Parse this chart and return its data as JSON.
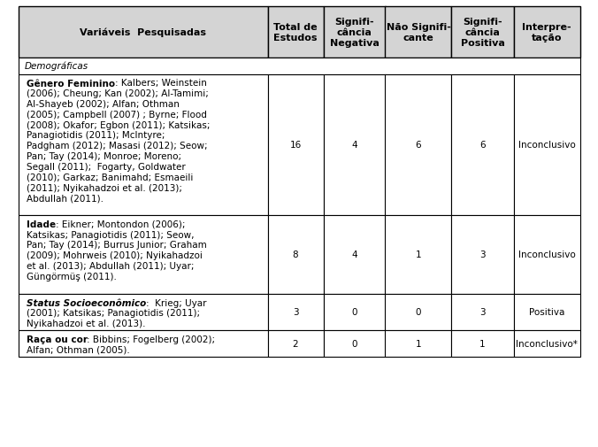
{
  "col_headers": [
    "Variáveis  Pesquisadas",
    "Total de\nEstudos",
    "Signifi-\ncância\nNegativa",
    "Não Signifi-\ncante",
    "Signifi-\ncância\nPositiva",
    "Interpre-\ntação"
  ],
  "section_label": "Demográficas",
  "rows": [
    {
      "var_bold": "Gênero Feminino",
      "var_italic_bold": false,
      "var_rest": ": Kalbers; Weinstein\n(2006); Cheung; Kan (2002); Al-Tamimi;\nAl-Shayeb (2002); Alfan; Othman\n(2005); Campbell (2007) ; Byrne; Flood\n(2008); Okafor; Egbon (2011); Katsikas;\nPanagiotidis (2011); McIntyre;\nPadgham (2012); Masasi (2012); Seow;\nPan; Tay (2014); Monroe; Moreno;\nSegall (2011);  Fogarty, Goldwater\n(2010); Garkaz; Banimahd; Esmaeili\n(2011); Nyikahadzoi et al. (2013);\nAbdullah (2011).",
      "total": "16",
      "neg": "4",
      "ns": "6",
      "pos": "6",
      "interp": "Inconclusivo"
    },
    {
      "var_bold": "Idade",
      "var_italic_bold": false,
      "var_rest": ": Eikner; Montondon (2006);\nKatsikas; Panagiotidis (2011); Seow,\nPan; Tay (2014); Burrus Junior; Graham\n(2009); Mohrweis (2010); Nyikahadzoi\net al. (2013); Abdullah (2011); Uyar;\nGüngörmüş (2011).",
      "total": "8",
      "neg": "4",
      "ns": "1",
      "pos": "3",
      "interp": "Inconclusivo"
    },
    {
      "var_bold": "Status Socioeconômico",
      "var_italic_bold": true,
      "var_rest": ":  Krieg; Uyar\n(2001); Katsikas; Panagiotidis (2011);\nNyikahadzoi et al. (2013).",
      "total": "3",
      "neg": "0",
      "ns": "0",
      "pos": "3",
      "interp": "Positiva"
    },
    {
      "var_bold": "Raça ou cor",
      "var_italic_bold": false,
      "var_rest": ": Bibbins; Fogelberg (2002);\nAlfan; Othman (2005).",
      "total": "2",
      "neg": "0",
      "ns": "1",
      "pos": "1",
      "interp": "Inconclusivo*"
    }
  ],
  "header_bg": "#d4d4d4",
  "border_color": "#000000",
  "text_color": "#000000",
  "font_size": 7.5,
  "header_font_size": 8.0,
  "col_widths_in": [
    2.82,
    0.63,
    0.7,
    0.75,
    0.7,
    0.75
  ],
  "fig_width": 6.76,
  "fig_height": 5.06,
  "dpi": 100
}
